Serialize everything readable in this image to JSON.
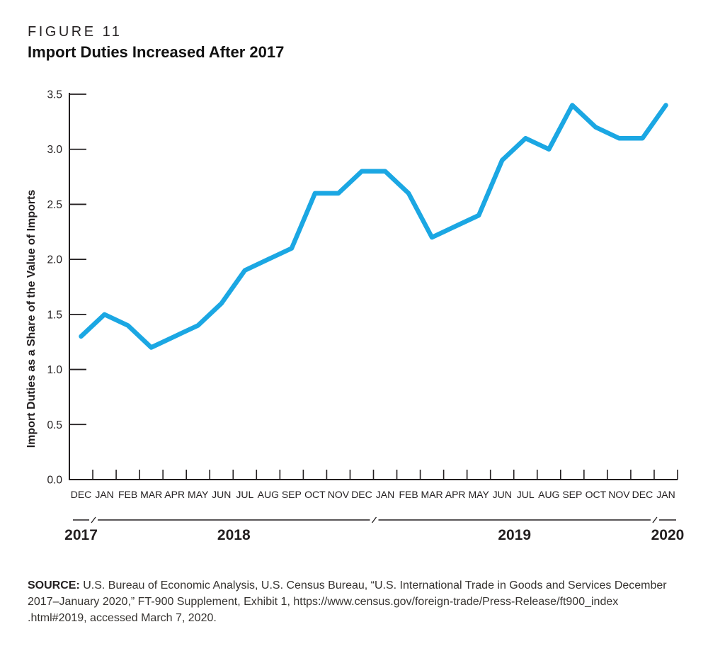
{
  "figure": {
    "label": "FIGURE 11",
    "title": "Import Duties Increased After 2017"
  },
  "chart_data": {
    "type": "line",
    "title": "Import Duties Increased After 2017",
    "xlabel": "",
    "ylabel": "Import Duties as a Share of the Value of Imports",
    "ylim": [
      0,
      3.5
    ],
    "y_ticks": [
      "0.0",
      "0.5",
      "1.0",
      "1.5",
      "2.0",
      "2.5",
      "3.0",
      "3.5"
    ],
    "grid": false,
    "legend": "none",
    "categories": [
      "DEC",
      "JAN",
      "FEB",
      "MAR",
      "APR",
      "MAY",
      "JUN",
      "JUL",
      "AUG",
      "SEP",
      "OCT",
      "NOV",
      "DEC",
      "JAN",
      "FEB",
      "MAR",
      "APR",
      "MAY",
      "JUN",
      "JUL",
      "AUG",
      "SEP",
      "OCT",
      "NOV",
      "DEC",
      "JAN"
    ],
    "year_groups": [
      {
        "label": "2017",
        "start": 0,
        "end": 0
      },
      {
        "label": "2018",
        "start": 1,
        "end": 12
      },
      {
        "label": "2019",
        "start": 13,
        "end": 24
      },
      {
        "label": "2020",
        "start": 25,
        "end": 25
      }
    ],
    "series": [
      {
        "name": "Import duties as a share of the value of imports",
        "color": "#1BA7E3",
        "values": [
          1.3,
          1.5,
          1.4,
          1.2,
          1.3,
          1.4,
          1.6,
          1.9,
          2.0,
          2.1,
          2.6,
          2.6,
          2.8,
          2.8,
          2.6,
          2.2,
          2.3,
          2.4,
          2.9,
          3.1,
          3.0,
          3.4,
          3.2,
          3.1,
          3.1,
          3.4
        ]
      }
    ]
  },
  "colors": {
    "line": "#1BA7E3",
    "axis": "#231F20",
    "text": "#231F20"
  },
  "source": {
    "label": "SOURCE:",
    "lines": [
      "U.S. Bureau of Economic Analysis, U.S. Census Bureau, “U.S. International Trade in Goods and Services December",
      "2017–January 2020,” FT-900 Supplement, Exhibit 1, https://www.census.gov/foreign-trade/Press-Release/ft900_index",
      ".html#2019, accessed March 7, 2020."
    ]
  }
}
